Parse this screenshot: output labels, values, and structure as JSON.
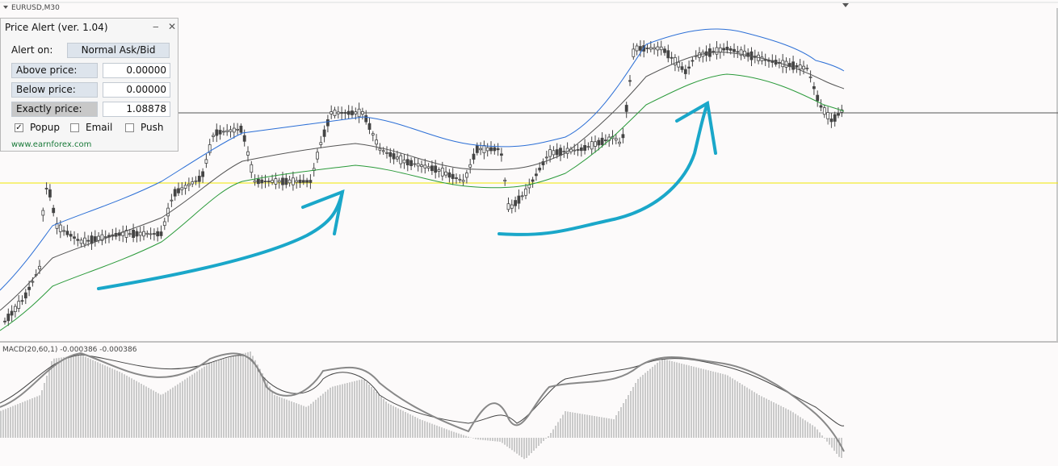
{
  "chart_header": {
    "symbol": "EURUSD,M30"
  },
  "indicator": {
    "label": "MACD(20,60,1) -0.000386 -0.000386"
  },
  "panel": {
    "title": "Price Alert (ver. 1.04)",
    "alert_on": {
      "label": "Alert on:",
      "button": "Normal Ask/Bid"
    },
    "fields": [
      {
        "label": "Above price:",
        "value": "0.00000"
      },
      {
        "label": "Below price:",
        "value": "0.00000"
      },
      {
        "label": "Exactly price:",
        "value": "1.08878"
      }
    ],
    "checkboxes": [
      {
        "label": "Popup",
        "checked": true
      },
      {
        "label": "Email",
        "checked": false
      },
      {
        "label": "Push",
        "checked": false
      }
    ],
    "link": "www.earnforex.com"
  }
}
